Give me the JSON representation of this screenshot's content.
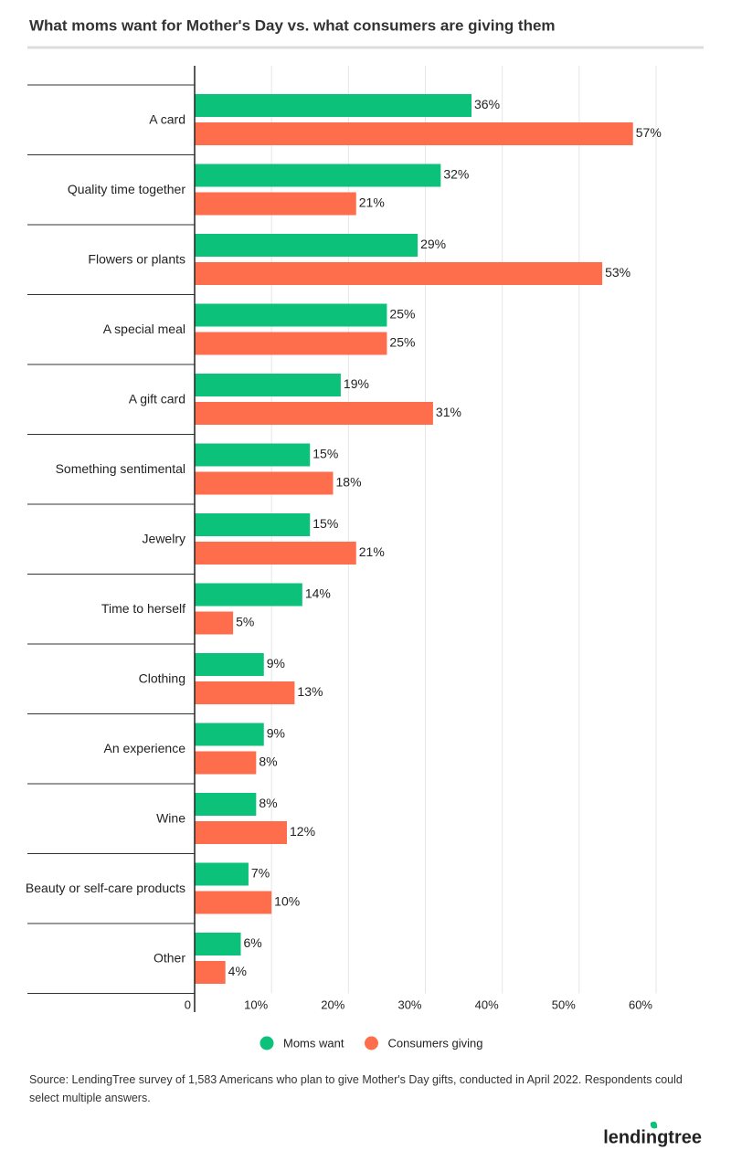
{
  "chart_data": {
    "type": "bar",
    "orientation": "horizontal",
    "title": "What moms want for Mother's Day vs. what consumers are giving them",
    "categories": [
      "A card",
      "Quality time together",
      "Flowers or plants",
      "A special meal",
      "A gift card",
      "Something sentimental",
      "Jewelry",
      "Time to herself",
      "Clothing",
      "An experience",
      "Wine",
      "Beauty or self-care products",
      "Other"
    ],
    "series": [
      {
        "name": "Moms want",
        "color": "#0cc27a",
        "values": [
          36,
          32,
          29,
          25,
          19,
          15,
          15,
          14,
          9,
          9,
          8,
          7,
          6
        ],
        "value_labels": [
          "36%",
          "32%",
          "29%",
          "25%",
          "19%",
          "15%",
          "15%",
          "14%",
          "9%",
          "9%",
          "8%",
          "7%",
          "6%"
        ]
      },
      {
        "name": "Consumers giving",
        "color": "#ff6e4c",
        "values": [
          57,
          21,
          53,
          25,
          31,
          18,
          21,
          5,
          13,
          8,
          12,
          10,
          4
        ],
        "value_labels": [
          "57%",
          "21%",
          "53%",
          "25%",
          "31%",
          "18%",
          "21%",
          "5%",
          "13%",
          "8%",
          "12%",
          "10%",
          "4%"
        ]
      }
    ],
    "xlim": [
      0,
      60
    ],
    "xticks": [
      0,
      {
        "value": 10,
        "label": "10%"
      },
      {
        "value": 20,
        "label": "20%"
      },
      {
        "value": 30,
        "label": "30%"
      },
      {
        "value": 40,
        "label": "40%"
      },
      {
        "value": 50,
        "label": "50%"
      },
      {
        "value": 60,
        "label": "60%"
      }
    ],
    "grid": true,
    "legend": "bottom",
    "source": "Source: LendingTree survey of 1,583 Americans who plan to give Mother's Day gifts, conducted in April 2022. Respondents could select multiple answers.",
    "logo": "lendingtree"
  }
}
